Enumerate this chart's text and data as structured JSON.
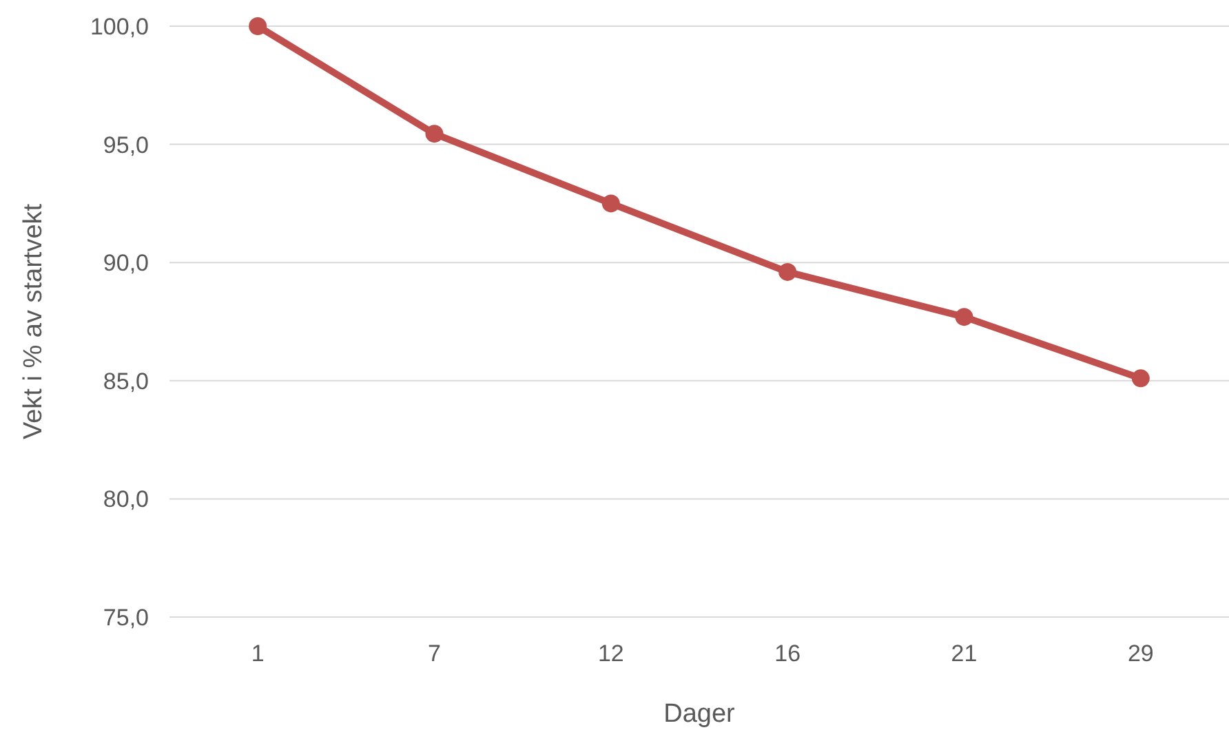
{
  "chart_data": {
    "type": "line",
    "xlabel": "Dager",
    "ylabel": "Vekt i % av startvekt",
    "categories": [
      "1",
      "7",
      "12",
      "16",
      "21",
      "29"
    ],
    "series": [
      {
        "color": "#c0504d",
        "values": [
          100,
          95.45,
          92.5,
          89.6,
          87.7,
          85.1
        ]
      }
    ],
    "ylim": [
      75,
      100
    ],
    "yticks": [
      {
        "value": 75,
        "label": "75,0"
      },
      {
        "value": 80,
        "label": "80,0"
      },
      {
        "value": 85,
        "label": "85,0"
      },
      {
        "value": 90,
        "label": "90,0"
      },
      {
        "value": 95,
        "label": "95,0"
      },
      {
        "value": 100,
        "label": "100,0"
      }
    ],
    "grid": "y",
    "marker": "circle",
    "line_style": "solid"
  }
}
